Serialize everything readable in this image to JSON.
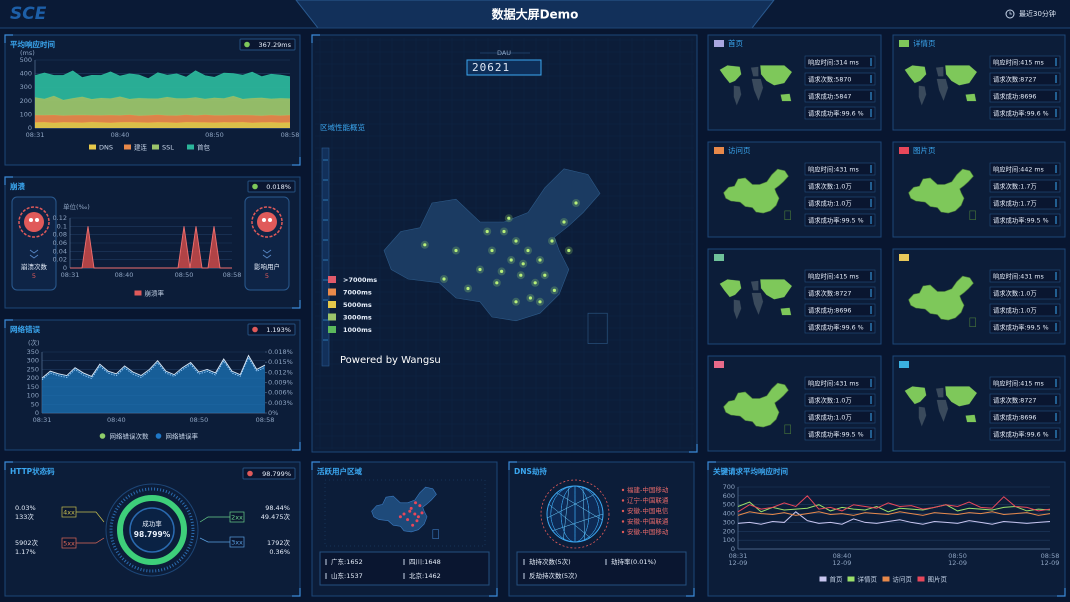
{
  "header": {
    "logo": "SCE",
    "title": "数据大屏Demo",
    "time_range": "最近30分钟"
  },
  "response_time": {
    "type": "area",
    "stacked": true,
    "title": "平均响应时间",
    "badge": "367.29ms",
    "y_label": "(ms)",
    "categories": [
      "08:31",
      null,
      null,
      null,
      null,
      null,
      null,
      null,
      null,
      "08:40",
      null,
      null,
      null,
      null,
      null,
      null,
      null,
      null,
      null,
      "08:50",
      null,
      null,
      null,
      null,
      null,
      null,
      null,
      "08:58"
    ],
    "ylim": [
      0,
      500
    ],
    "yticks": [
      0,
      100,
      200,
      300,
      400,
      500
    ],
    "series": [
      {
        "name": "DNS",
        "color": "#e6c84a",
        "values": [
          40,
          42,
          38,
          41,
          40,
          39,
          43,
          40,
          38,
          41,
          42,
          40,
          39,
          41,
          40,
          38,
          42,
          41,
          40,
          39,
          41,
          40,
          42,
          38,
          40,
          41,
          39,
          40
        ]
      },
      {
        "name": "建连",
        "color": "#e8894a",
        "values": [
          55,
          52,
          58,
          50,
          54,
          56,
          51,
          53,
          57,
          52,
          55,
          50,
          54,
          56,
          52,
          53,
          55,
          51,
          57,
          54,
          52,
          55,
          53,
          56,
          50,
          54,
          52,
          55
        ]
      },
      {
        "name": "SSL",
        "color": "#9bc46a",
        "values": [
          130,
          120,
          140,
          115,
          125,
          135,
          118,
          128,
          122,
          138,
          116,
          130,
          124,
          119,
          136,
          127,
          121,
          133,
          117,
          129,
          125,
          140,
          118,
          126,
          132,
          120,
          128,
          122
        ]
      },
      {
        "name": "首包",
        "color": "#2bb59a",
        "values": [
          160,
          190,
          150,
          180,
          200,
          140,
          175,
          165,
          195,
          150,
          185,
          170,
          145,
          190,
          160,
          180,
          155,
          195,
          170,
          150,
          185,
          165,
          175,
          190,
          155,
          180,
          170,
          160
        ]
      }
    ]
  },
  "crash": {
    "type": "area",
    "title": "崩溃",
    "badge": "0.018%",
    "count_label": "崩溃次数",
    "count": 5,
    "users_label": "影响用户",
    "users": 5,
    "y_label": "单位(‰)",
    "categories": [
      "08:31",
      null,
      null,
      null,
      null,
      null,
      null,
      null,
      null,
      "08:40",
      null,
      null,
      null,
      null,
      null,
      null,
      null,
      null,
      null,
      "08:50",
      null,
      null,
      null,
      null,
      null,
      null,
      null,
      "08:58"
    ],
    "ylim": [
      0,
      0.12
    ],
    "yticks": [
      0,
      0.02,
      0.04,
      0.06,
      0.08,
      0.1,
      0.12
    ],
    "series": [
      {
        "name": "崩溃率",
        "color": "#e05a5a",
        "values": [
          0,
          0,
          0,
          0.1,
          0,
          0,
          0,
          0,
          0,
          0,
          0,
          0,
          0,
          0,
          0,
          0,
          0,
          0,
          0,
          0.1,
          0,
          0.1,
          0,
          0,
          0.1,
          0,
          0,
          0
        ]
      }
    ]
  },
  "network": {
    "type": "area",
    "title": "网络错误",
    "badge": "1.193%",
    "y_label": "(次)",
    "categories": [
      "08:31",
      null,
      null,
      null,
      null,
      null,
      null,
      null,
      null,
      "08:40",
      null,
      null,
      null,
      null,
      null,
      null,
      null,
      null,
      null,
      "08:50",
      null,
      null,
      null,
      null,
      null,
      null,
      null,
      "08:58"
    ],
    "ylim": [
      0,
      350
    ],
    "yticks": [
      0,
      50,
      100,
      150,
      200,
      250,
      300,
      350
    ],
    "y2lim": [
      0,
      0.018
    ],
    "y2ticks": [
      {
        "value": 0,
        "label": "0%"
      },
      {
        "value": 0.003,
        "label": "0.003%"
      },
      {
        "value": 0.006,
        "label": "0.006%"
      },
      {
        "value": 0.009,
        "label": "0.009%"
      },
      {
        "value": 0.012,
        "label": "0.012%"
      },
      {
        "value": 0.015,
        "label": "0.015%"
      },
      {
        "value": 0.018,
        "label": "0.018%"
      }
    ],
    "series": [
      {
        "name": "网络错误次数",
        "color": "#8fce6a",
        "values": [
          200,
          240,
          225,
          215,
          260,
          230,
          210,
          280,
          240,
          225,
          270,
          235,
          215,
          250,
          300,
          240,
          220,
          260,
          290,
          235,
          250,
          230,
          310,
          240,
          220,
          330,
          250,
          275
        ]
      },
      {
        "name": "网络错误率",
        "color": "#1f78c8",
        "axis": "y2",
        "values": [
          0.0098,
          0.0118,
          0.011,
          0.0105,
          0.0128,
          0.0112,
          0.0102,
          0.0138,
          0.0118,
          0.011,
          0.0133,
          0.0115,
          0.0105,
          0.0123,
          0.0148,
          0.0118,
          0.0108,
          0.0128,
          0.0143,
          0.0115,
          0.0123,
          0.0112,
          0.0153,
          0.0118,
          0.0108,
          0.0163,
          0.0123,
          0.0135
        ]
      }
    ]
  },
  "http": {
    "title": "HTTP状态码",
    "badge": "98.799%",
    "center_label": "成功率",
    "center_value": "98.799%",
    "codes": [
      {
        "code": "4xx",
        "lines": [
          "0.03%",
          "133次"
        ]
      },
      {
        "code": "5xx",
        "lines": [
          "5902次",
          "1.17%"
        ]
      },
      {
        "code": "2xx",
        "lines": [
          "98.44%",
          "49.475次"
        ]
      },
      {
        "code": "3xx",
        "lines": [
          "1792次",
          "0.36%"
        ]
      }
    ]
  },
  "active_users": {
    "title": "活跃用户区域",
    "stats": [
      "广东:1652",
      "四川:1648",
      "山东:1537",
      "北京:1462"
    ]
  },
  "dns": {
    "title": "DNS劫持",
    "list": [
      "福建-中国移动",
      "辽宁-中国联通",
      "安徽-中国电信",
      "安徽-中国联通",
      "安徽-中国移动"
    ],
    "stats": [
      "劫持次数(5次)",
      "劫持率(0.01%)",
      "反劫持次数(5次)"
    ]
  },
  "key_requests": {
    "type": "line",
    "title": "关键请求平均响应时间",
    "categories": [
      {
        "time": "08:31",
        "date": "12-09"
      },
      null,
      null,
      null,
      null,
      null,
      null,
      null,
      null,
      {
        "time": "08:40",
        "date": "12-09"
      },
      null,
      null,
      null,
      null,
      null,
      null,
      null,
      null,
      null,
      {
        "time": "08:50",
        "date": "12-09"
      },
      null,
      null,
      null,
      null,
      null,
      null,
      null,
      {
        "time": "08:58",
        "date": "12-09"
      }
    ],
    "ylim": [
      0,
      700
    ],
    "yticks": [
      0,
      100,
      200,
      300,
      400,
      500,
      600,
      700
    ],
    "series": [
      {
        "name": "首页",
        "color": "#c9c6f0",
        "values": [
          290,
          300,
          280,
          310,
          300,
          420,
          320,
          290,
          300,
          280,
          340,
          300,
          290,
          310,
          330,
          300,
          280,
          310,
          300,
          290,
          320,
          300,
          280,
          310,
          300,
          290,
          300,
          310
        ]
      },
      {
        "name": "详情页",
        "color": "#9be06a",
        "values": [
          480,
          530,
          420,
          470,
          440,
          450,
          460,
          500,
          430,
          470,
          450,
          440,
          480,
          420,
          460,
          450,
          440,
          470,
          500,
          430,
          460,
          450,
          440,
          470,
          480,
          430,
          450,
          440
        ]
      },
      {
        "name": "访问页",
        "color": "#e8894a",
        "values": [
          380,
          420,
          400,
          390,
          410,
          380,
          400,
          420,
          390,
          400,
          380,
          410,
          400,
          390,
          420,
          400,
          380,
          410,
          400,
          390,
          410,
          400,
          420,
          390,
          400,
          410,
          380,
          400
        ]
      },
      {
        "name": "图片页",
        "color": "#e8475a",
        "values": [
          420,
          500,
          450,
          470,
          520,
          480,
          600,
          450,
          470,
          430,
          500,
          480,
          460,
          520,
          480,
          490,
          450,
          470,
          500,
          480,
          530,
          470,
          460,
          590,
          480,
          470,
          430,
          450
        ]
      }
    ]
  },
  "center": {
    "dau_label": "DAU",
    "dau": 20621,
    "title": "区域性能概览",
    "credit": "Powered by Wangsu",
    "legend": [
      {
        "label": ">7000ms",
        "color": "#e05a6a"
      },
      {
        "label": "7000ms",
        "color": "#e8894a"
      },
      {
        "label": "5000ms",
        "color": "#e6c84a"
      },
      {
        "label": "3000ms",
        "color": "#9bc46a"
      },
      {
        "label": "1000ms",
        "color": "#5cb85c"
      }
    ]
  },
  "pages": [
    {
      "title": "首页",
      "color": "#a9a6e0",
      "map": "world",
      "stats": [
        "响应时间:314 ms",
        "请求次数:5870",
        "请求成功:5847",
        "请求成功率:99.6 %"
      ]
    },
    {
      "title": "详情页",
      "color": "#7ec85a",
      "map": "world",
      "stats": [
        "响应时间:415 ms",
        "请求次数:8727",
        "请求成功:8696",
        "请求成功率:99.6 %"
      ]
    },
    {
      "title": "访问页",
      "color": "#e8894a",
      "map": "china",
      "stats": [
        "响应时间:431 ms",
        "请求次数:1.0万",
        "请求成功:1.0万",
        "请求成功率:99.5 %"
      ]
    },
    {
      "title": "图片页",
      "color": "#e8475a",
      "map": "china",
      "stats": [
        "响应时间:442 ms",
        "请求次数:1.7万",
        "请求成功:1.7万",
        "请求成功率:99.5 %"
      ]
    },
    {
      "color": "#6fc29a",
      "map": "world",
      "stats": [
        "响应时间:415 ms",
        "请求次数:8727",
        "请求成功:8696",
        "请求成功率:99.6 %"
      ]
    },
    {
      "color": "#e8c85a",
      "map": "china",
      "stats": [
        "响应时间:431 ms",
        "请求次数:1.0万",
        "请求成功:1.0万",
        "请求成功率:99.5 %"
      ]
    },
    {
      "color": "#e86a8a",
      "map": "china",
      "stats": [
        "响应时间:431 ms",
        "请求次数:1.0万",
        "请求成功:1.0万",
        "请求成功率:99.5 %"
      ]
    },
    {
      "color": "#3ab0e0",
      "map": "world",
      "stats": [
        "响应时间:415 ms",
        "请求次数:8727",
        "请求成功:8696",
        "请求成功率:99.6 %"
      ]
    }
  ]
}
